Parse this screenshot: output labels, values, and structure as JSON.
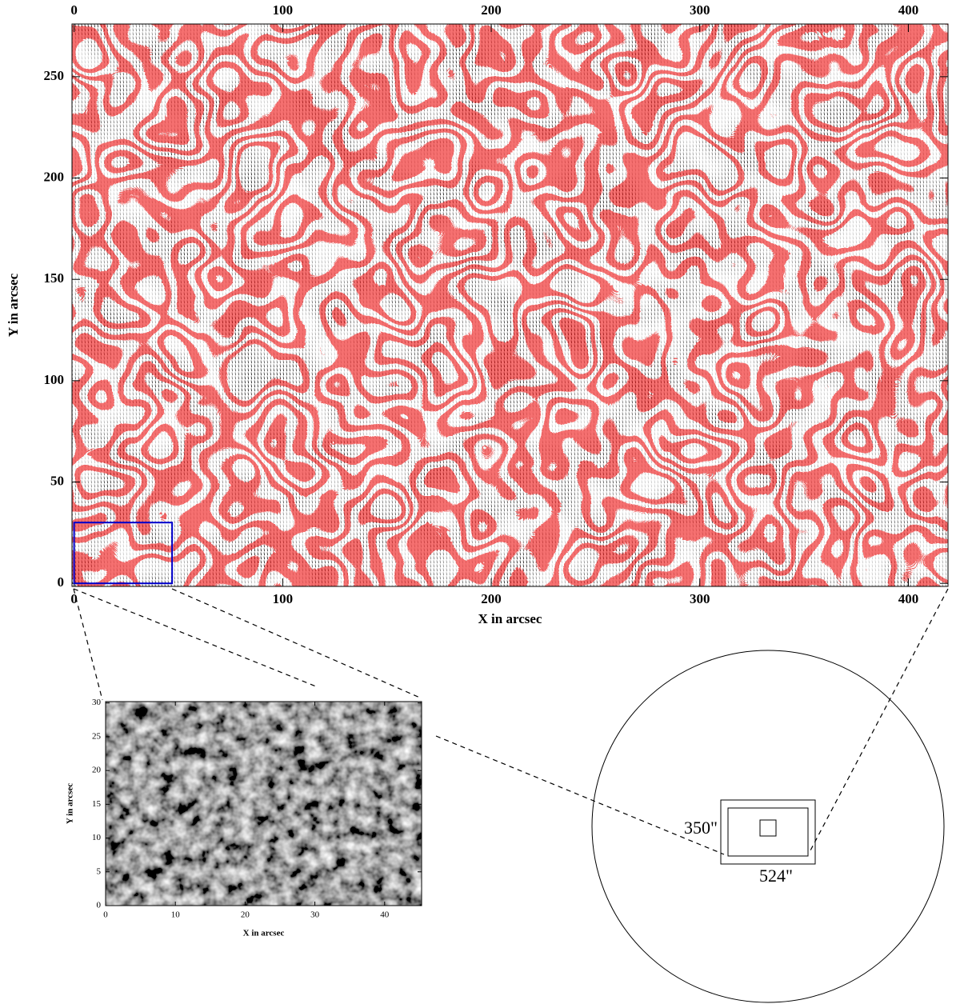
{
  "chart_data": [
    {
      "type": "vector-field",
      "xlabel": "X in arcsec",
      "ylabel": "Y in arcsec",
      "xlim": [
        -1,
        419
      ],
      "ylim": [
        -1.5,
        276
      ],
      "xticks": [
        0,
        100,
        200,
        300,
        400
      ],
      "yticks": [
        0,
        50,
        100,
        150,
        200,
        250
      ],
      "region": {
        "x": [
          0,
          47
        ],
        "y": [
          0,
          30
        ],
        "color": "#0000cc"
      }
    },
    {
      "type": "image",
      "xlabel": "X in arcsec",
      "ylabel": "Y in arcsec",
      "xlim": [
        0,
        45.3
      ],
      "ylim": [
        0,
        30.2
      ],
      "xticks": [
        0,
        10,
        20,
        30,
        40
      ],
      "yticks": [
        0,
        5,
        10,
        15,
        20,
        25,
        30
      ]
    }
  ],
  "diagram": {
    "labels": [
      "350\"",
      "524\""
    ]
  }
}
